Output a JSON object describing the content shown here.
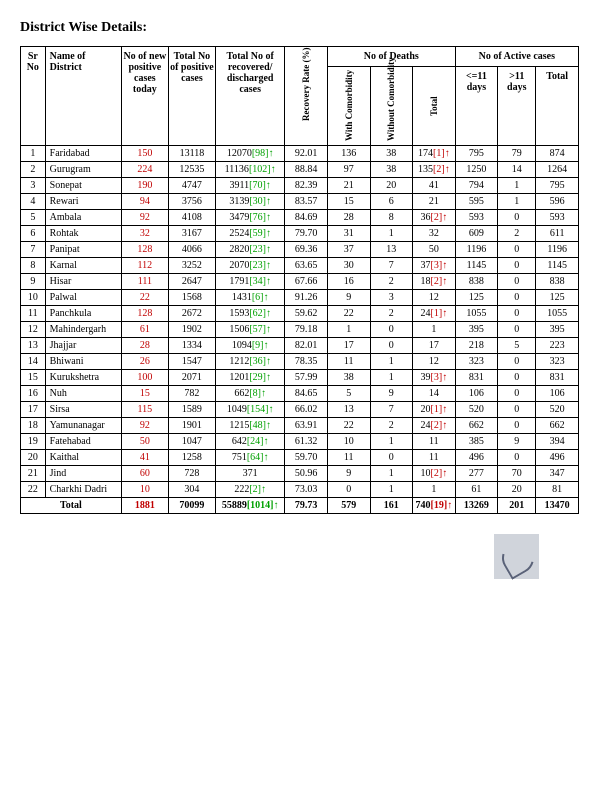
{
  "title": "District Wise Details:",
  "headers": {
    "sr": "Sr No",
    "name": "Name of District",
    "new": "No of new positive cases today",
    "totalpos": "Total No of positive cases",
    "recovered": "Total No of recovered/ discharged cases",
    "rate": "Recovery Rate (%)",
    "deaths_group": "No of Deaths",
    "with_com": "With Comorbidity",
    "without_com": "Without Comorbidity",
    "death_total": "Total",
    "active_group": "No of Active cases",
    "le11": "<=11 days",
    "gt11": ">11 days",
    "active_total": "Total"
  },
  "rows": [
    {
      "sr": "1",
      "name": "Faridabad",
      "new": "150",
      "totalpos": "13118",
      "rec": "12070",
      "recsup": "[98]",
      "rate": "92.01",
      "wc": "136",
      "woc": "38",
      "dt": "174",
      "dtsup": "[1]",
      "a11": "795",
      "ag11": "79",
      "at": "874"
    },
    {
      "sr": "2",
      "name": "Gurugram",
      "new": "224",
      "totalpos": "12535",
      "rec": "11136",
      "recsup": "[102]",
      "rate": "88.84",
      "wc": "97",
      "woc": "38",
      "dt": "135",
      "dtsup": "[2]",
      "a11": "1250",
      "ag11": "14",
      "at": "1264"
    },
    {
      "sr": "3",
      "name": "Sonepat",
      "new": "190",
      "totalpos": "4747",
      "rec": "3911",
      "recsup": "[70]",
      "rate": "82.39",
      "wc": "21",
      "woc": "20",
      "dt": "41",
      "dtsup": "",
      "a11": "794",
      "ag11": "1",
      "at": "795"
    },
    {
      "sr": "4",
      "name": "Rewari",
      "new": "94",
      "totalpos": "3756",
      "rec": "3139",
      "recsup": "[30]",
      "rate": "83.57",
      "wc": "15",
      "woc": "6",
      "dt": "21",
      "dtsup": "",
      "a11": "595",
      "ag11": "1",
      "at": "596"
    },
    {
      "sr": "5",
      "name": "Ambala",
      "new": "92",
      "totalpos": "4108",
      "rec": "3479",
      "recsup": "[76]",
      "rate": "84.69",
      "wc": "28",
      "woc": "8",
      "dt": "36",
      "dtsup": "[2]",
      "a11": "593",
      "ag11": "0",
      "at": "593"
    },
    {
      "sr": "6",
      "name": "Rohtak",
      "new": "32",
      "totalpos": "3167",
      "rec": "2524",
      "recsup": "[59]",
      "rate": "79.70",
      "wc": "31",
      "woc": "1",
      "dt": "32",
      "dtsup": "",
      "a11": "609",
      "ag11": "2",
      "at": "611"
    },
    {
      "sr": "7",
      "name": "Panipat",
      "new": "128",
      "totalpos": "4066",
      "rec": "2820",
      "recsup": "[23]",
      "rate": "69.36",
      "wc": "37",
      "woc": "13",
      "dt": "50",
      "dtsup": "",
      "a11": "1196",
      "ag11": "0",
      "at": "1196"
    },
    {
      "sr": "8",
      "name": "Karnal",
      "new": "112",
      "totalpos": "3252",
      "rec": "2070",
      "recsup": "[23]",
      "rate": "63.65",
      "wc": "30",
      "woc": "7",
      "dt": "37",
      "dtsup": "[3]",
      "a11": "1145",
      "ag11": "0",
      "at": "1145"
    },
    {
      "sr": "9",
      "name": "Hisar",
      "new": "111",
      "totalpos": "2647",
      "rec": "1791",
      "recsup": "[34]",
      "rate": "67.66",
      "wc": "16",
      "woc": "2",
      "dt": "18",
      "dtsup": "[2]",
      "a11": "838",
      "ag11": "0",
      "at": "838"
    },
    {
      "sr": "10",
      "name": "Palwal",
      "new": "22",
      "totalpos": "1568",
      "rec": "1431",
      "recsup": "[6]",
      "rate": "91.26",
      "wc": "9",
      "woc": "3",
      "dt": "12",
      "dtsup": "",
      "a11": "125",
      "ag11": "0",
      "at": "125"
    },
    {
      "sr": "11",
      "name": "Panchkula",
      "new": "128",
      "totalpos": "2672",
      "rec": "1593",
      "recsup": "[62]",
      "rate": "59.62",
      "wc": "22",
      "woc": "2",
      "dt": "24",
      "dtsup": "[1]",
      "a11": "1055",
      "ag11": "0",
      "at": "1055"
    },
    {
      "sr": "12",
      "name": "Mahindergarh",
      "new": "61",
      "totalpos": "1902",
      "rec": "1506",
      "recsup": "[57]",
      "rate": "79.18",
      "wc": "1",
      "woc": "0",
      "dt": "1",
      "dtsup": "",
      "a11": "395",
      "ag11": "0",
      "at": "395"
    },
    {
      "sr": "13",
      "name": "Jhajjar",
      "new": "28",
      "totalpos": "1334",
      "rec": "1094",
      "recsup": "[9]",
      "rate": "82.01",
      "wc": "17",
      "woc": "0",
      "dt": "17",
      "dtsup": "",
      "a11": "218",
      "ag11": "5",
      "at": "223"
    },
    {
      "sr": "14",
      "name": "Bhiwani",
      "new": "26",
      "totalpos": "1547",
      "rec": "1212",
      "recsup": "[36]",
      "rate": "78.35",
      "wc": "11",
      "woc": "1",
      "dt": "12",
      "dtsup": "",
      "a11": "323",
      "ag11": "0",
      "at": "323"
    },
    {
      "sr": "15",
      "name": "Kurukshetra",
      "new": "100",
      "totalpos": "2071",
      "rec": "1201",
      "recsup": "[29]",
      "rate": "57.99",
      "wc": "38",
      "woc": "1",
      "dt": "39",
      "dtsup": "[3]",
      "a11": "831",
      "ag11": "0",
      "at": "831"
    },
    {
      "sr": "16",
      "name": "Nuh",
      "new": "15",
      "totalpos": "782",
      "rec": "662",
      "recsup": "[8]",
      "rate": "84.65",
      "wc": "5",
      "woc": "9",
      "dt": "14",
      "dtsup": "",
      "a11": "106",
      "ag11": "0",
      "at": "106"
    },
    {
      "sr": "17",
      "name": "Sirsa",
      "new": "115",
      "totalpos": "1589",
      "rec": "1049",
      "recsup": "[154]",
      "rate": "66.02",
      "wc": "13",
      "woc": "7",
      "dt": "20",
      "dtsup": "[1]",
      "a11": "520",
      "ag11": "0",
      "at": "520"
    },
    {
      "sr": "18",
      "name": "Yamunanagar",
      "new": "92",
      "totalpos": "1901",
      "rec": "1215",
      "recsup": "[48]",
      "rate": "63.91",
      "wc": "22",
      "woc": "2",
      "dt": "24",
      "dtsup": "[2]",
      "a11": "662",
      "ag11": "0",
      "at": "662"
    },
    {
      "sr": "19",
      "name": "Fatehabad",
      "new": "50",
      "totalpos": "1047",
      "rec": "642",
      "recsup": "[24]",
      "rate": "61.32",
      "wc": "10",
      "woc": "1",
      "dt": "11",
      "dtsup": "",
      "a11": "385",
      "ag11": "9",
      "at": "394"
    },
    {
      "sr": "20",
      "name": "Kaithal",
      "new": "41",
      "totalpos": "1258",
      "rec": "751",
      "recsup": "[64]",
      "rate": "59.70",
      "wc": "11",
      "woc": "0",
      "dt": "11",
      "dtsup": "",
      "a11": "496",
      "ag11": "0",
      "at": "496"
    },
    {
      "sr": "21",
      "name": "Jind",
      "new": "60",
      "totalpos": "728",
      "rec": "371",
      "recsup": "",
      "rate": "50.96",
      "wc": "9",
      "woc": "1",
      "dt": "10",
      "dtsup": "[2]",
      "a11": "277",
      "ag11": "70",
      "at": "347"
    },
    {
      "sr": "22",
      "name": "Charkhi Dadri",
      "new": "10",
      "totalpos": "304",
      "rec": "222",
      "recsup": "[2]",
      "rate": "73.03",
      "wc": "0",
      "woc": "1",
      "dt": "1",
      "dtsup": "",
      "a11": "61",
      "ag11": "20",
      "at": "81"
    }
  ],
  "total": {
    "label": "Total",
    "new": "1881",
    "totalpos": "70099",
    "rec": "55889",
    "recsup": "[1014]",
    "rate": "79.73",
    "wc": "579",
    "woc": "161",
    "dt": "740",
    "dtsup": "[19]",
    "a11": "13269",
    "ag11": "201",
    "at": "13470"
  }
}
